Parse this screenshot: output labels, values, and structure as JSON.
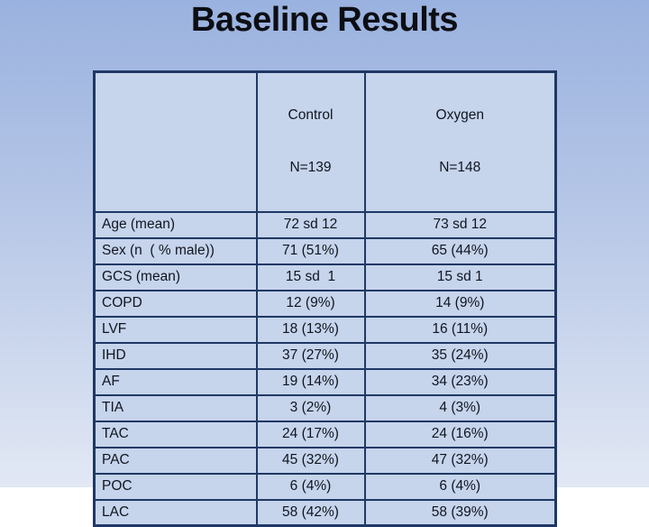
{
  "slide": {
    "title": "Baseline Results"
  },
  "table": {
    "columns": [
      {
        "label": ""
      },
      {
        "label": "Control",
        "sublabel": "N=139"
      },
      {
        "label": "Oxygen",
        "sublabel": "N=148"
      }
    ],
    "rows": [
      {
        "label": "Age (mean)",
        "control": "72 sd 12",
        "oxygen": "73 sd 12"
      },
      {
        "label": "Sex (n  ( % male))",
        "control": "71 (51%)",
        "oxygen": "65 (44%)"
      },
      {
        "label": "GCS (mean)",
        "control": "15 sd  1",
        "oxygen": "15 sd 1"
      },
      {
        "label": "COPD",
        "control": "12 (9%)",
        "oxygen": "14 (9%)"
      },
      {
        "label": "LVF",
        "control": "18 (13%)",
        "oxygen": "16 (11%)"
      },
      {
        "label": "IHD",
        "control": "37 (27%)",
        "oxygen": "35 (24%)"
      },
      {
        "label": "AF",
        "control": "19 (14%)",
        "oxygen": "34 (23%)"
      },
      {
        "label": "TIA",
        "control": "3 (2%)",
        "oxygen": "4 (3%)"
      },
      {
        "label": "TAC",
        "control": "24 (17%)",
        "oxygen": "24 (16%)"
      },
      {
        "label": "PAC",
        "control": "45 (32%)",
        "oxygen": "47 (32%)"
      },
      {
        "label": "POC",
        "control": "6 (4%)",
        "oxygen": "6 (4%)"
      },
      {
        "label": "LAC",
        "control": "58 (42%)",
        "oxygen": "58 (39%)"
      }
    ]
  },
  "colors": {
    "background_top": "#9ab2df",
    "background_bottom": "#e2e8f4",
    "cell_fill": "#c6d4ec",
    "table_border": "#1f3864",
    "text": "#10151f"
  }
}
